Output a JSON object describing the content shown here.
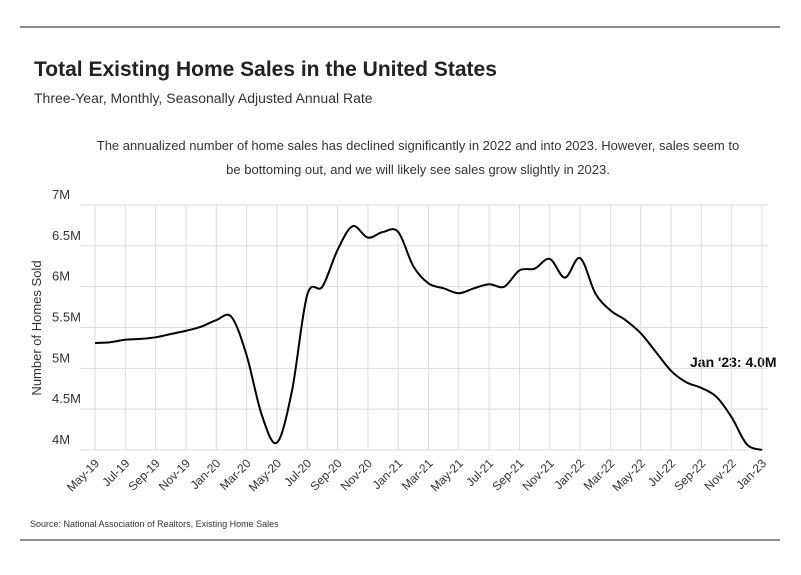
{
  "chart_data": {
    "type": "line",
    "title": "Total Existing Home Sales in the United States",
    "subtitle": "Three-Year, Monthly, Seasonally Adjusted Annual Rate",
    "note": "The annualized number of home sales has declined significantly in 2022 and into 2023. However, sales seem to be bottoming out, and we will likely see sales grow slightly in 2023.",
    "y_label": "Number of Homes Sold",
    "annotation": "Jan '23: 4.0M",
    "source": "Source:  National Association of Realtors, Existing Home Sales",
    "categories": [
      "May-19",
      null,
      "Jul-19",
      null,
      "Sep-19",
      null,
      "Nov-19",
      null,
      "Jan-20",
      null,
      "Mar-20",
      null,
      "May-20",
      null,
      "Jul-20",
      null,
      "Sep-20",
      null,
      "Nov-20",
      null,
      "Jan-21",
      null,
      "Mar-21",
      null,
      "May-21",
      null,
      "Jul-21",
      null,
      "Sep-21",
      null,
      "Nov-21",
      null,
      "Jan-22",
      null,
      "Mar-22",
      null,
      "May-22",
      null,
      "Jul-22",
      null,
      "Sep-22",
      null,
      "Nov-22",
      null,
      "Jan-23"
    ],
    "series": [
      {
        "name": "Existing Home Sales",
        "color": "#000000",
        "values": [
          5.31,
          5.32,
          5.35,
          5.36,
          5.38,
          5.42,
          5.46,
          5.51,
          5.59,
          5.63,
          5.16,
          4.43,
          4.09,
          4.73,
          5.9,
          6.0,
          6.45,
          6.74,
          6.6,
          6.67,
          6.67,
          6.25,
          6.04,
          5.98,
          5.92,
          5.98,
          6.03,
          6.0,
          6.2,
          6.22,
          6.34,
          6.11,
          6.35,
          5.92,
          5.71,
          5.59,
          5.43,
          5.2,
          4.97,
          4.83,
          4.76,
          4.65,
          4.4,
          4.07,
          4.0
        ]
      }
    ],
    "ylim": [
      4,
      7
    ],
    "yticks": [
      {
        "value": 4,
        "label": "4M"
      },
      {
        "value": 4.5,
        "label": "4.5M"
      },
      {
        "value": 5,
        "label": "5M"
      },
      {
        "value": 5.5,
        "label": "5.5M"
      },
      {
        "value": 6,
        "label": "6M"
      },
      {
        "value": 6.5,
        "label": "6.5M"
      },
      {
        "value": 7,
        "label": "7M"
      }
    ],
    "grid": true
  }
}
